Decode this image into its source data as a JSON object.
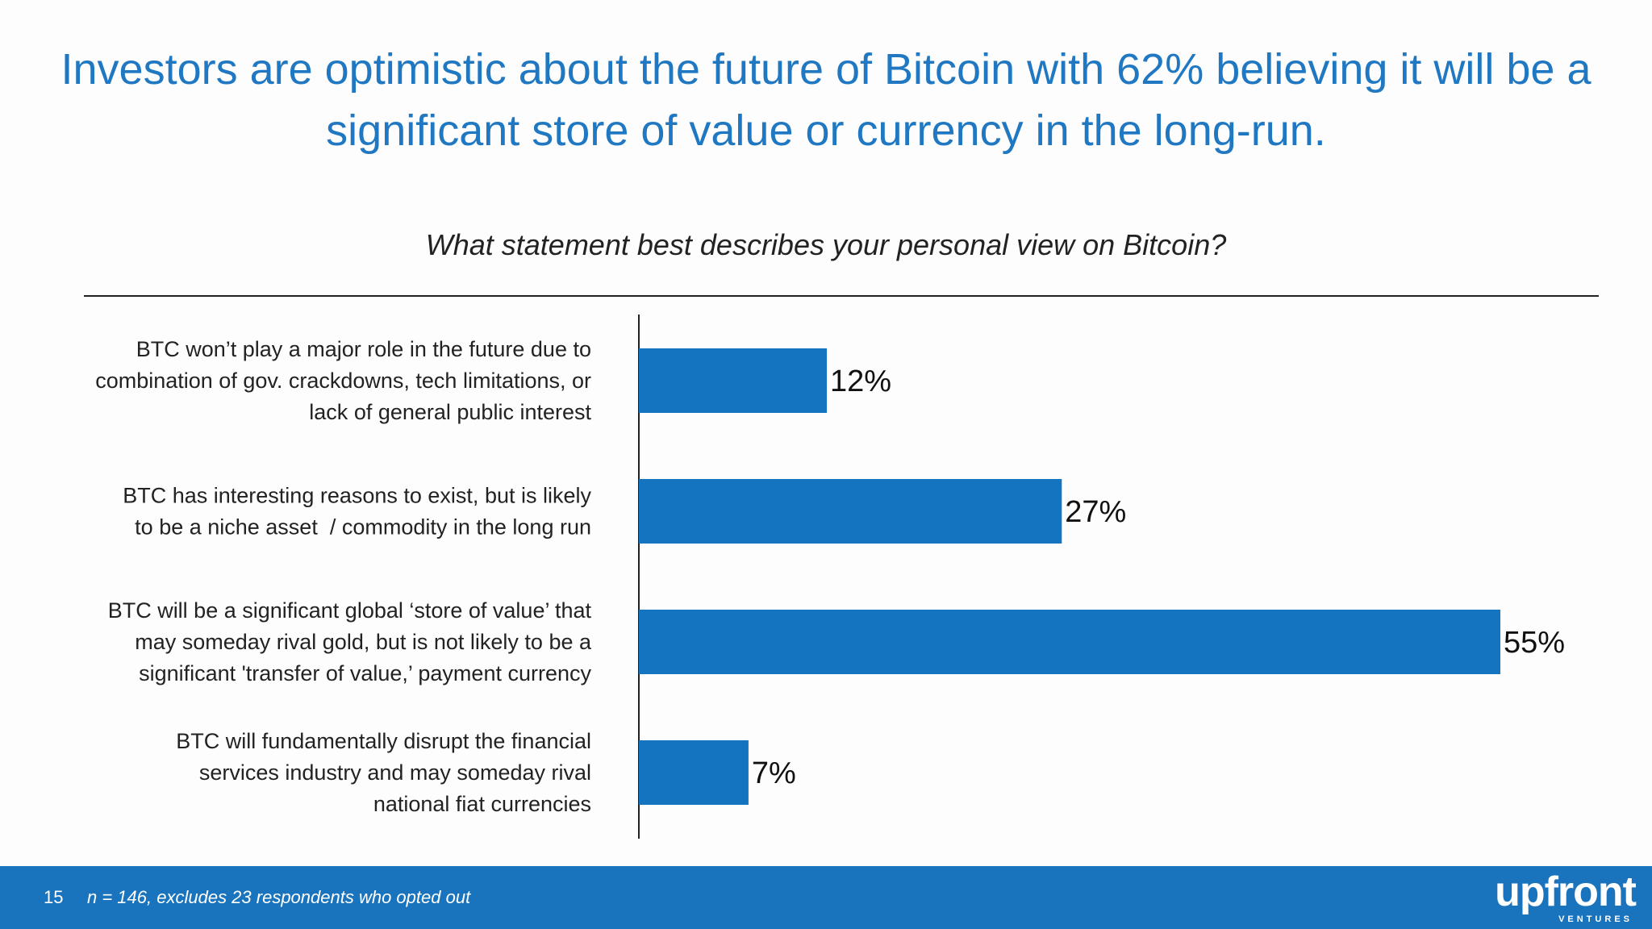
{
  "slide": {
    "headline": "Investors are optimistic about the future of Bitcoin with 62% believing it will be a significant store of value or currency in the long-run.",
    "page_number": "15",
    "footnote": "n = 146, excludes 23 respondents who opted out",
    "logo_text": "upfront",
    "logo_subtext": "VENTURES"
  },
  "colors": {
    "accent": "#1f78c1",
    "bar": "#1474bf",
    "footer": "#1a74bd"
  },
  "chart_data": {
    "type": "bar",
    "orientation": "horizontal",
    "title": "What statement best describes your personal view on Bitcoin?",
    "categories": [
      [
        "BTC won’t play a major role in the future due to",
        "combination of gov. crackdowns, tech limitations, or",
        "lack of general public interest"
      ],
      [
        "BTC has interesting reasons to exist, but is likely",
        "to be a niche asset  / commodity in the long run"
      ],
      [
        "BTC will be a significant global ‘store of value’ that",
        "may someday rival gold, but is not likely to be a",
        "significant 'transfer of value,’ payment currency"
      ],
      [
        "BTC will fundamentally disrupt the financial",
        "services industry and may someday rival",
        "national fiat currencies"
      ]
    ],
    "values": [
      12,
      27,
      55,
      7
    ],
    "value_labels": [
      "12%",
      "27%",
      "55%",
      "7%"
    ],
    "xlim": [
      0,
      55
    ],
    "grid": false,
    "legend": "none"
  }
}
